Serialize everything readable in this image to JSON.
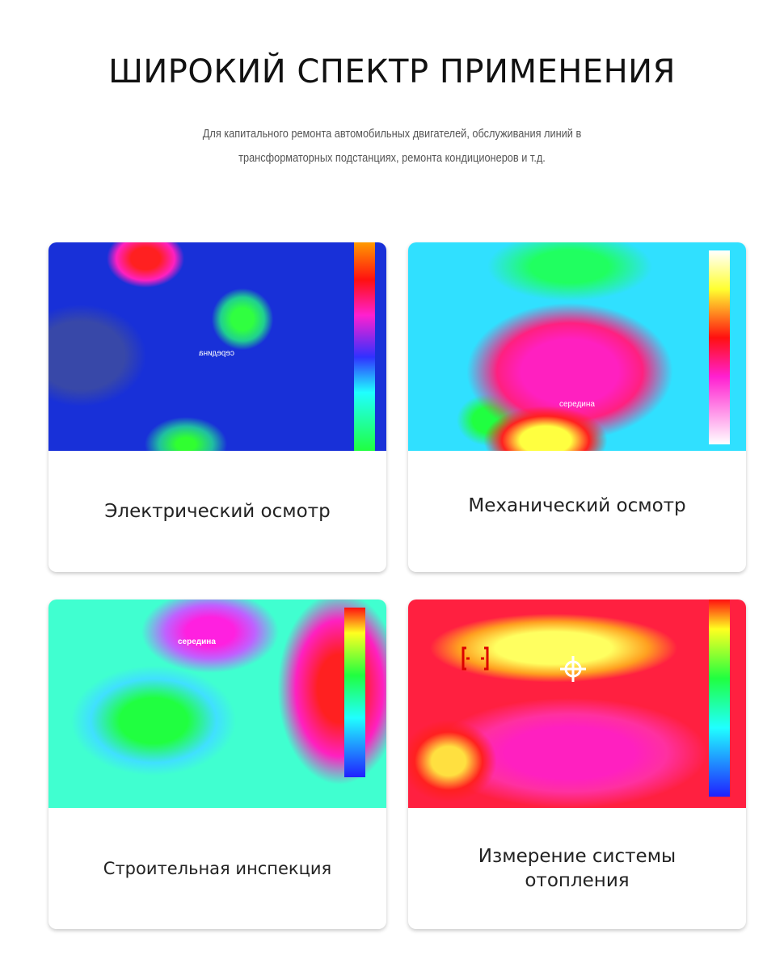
{
  "header": {
    "title": "ШИРОКИЙ СПЕКТР ПРИМЕНЕНИЯ",
    "subtitle": [
      "Для капитального ремонта автомобильных двигателей, обслуживания линий в",
      "трансформаторных подстанциях, ремонта кондиционеров и т.д."
    ]
  },
  "cards": [
    {
      "label": "Электрический осмотр",
      "image_label": "середина"
    },
    {
      "label": "Механический осмотр",
      "image_label": "середина"
    },
    {
      "label": "Строительная инспекция",
      "image_label": "середина"
    },
    {
      "label": "Измерение системы отопления"
    }
  ]
}
